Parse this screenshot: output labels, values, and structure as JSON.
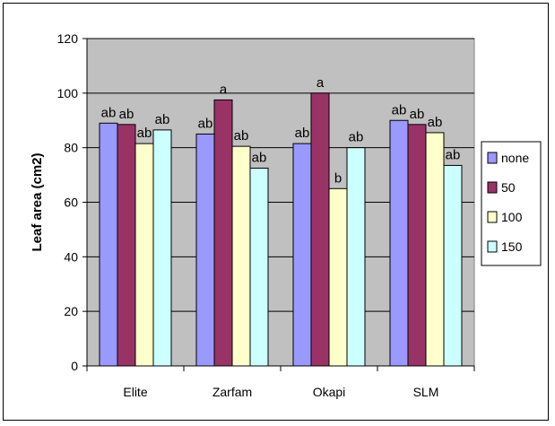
{
  "chart_data": {
    "type": "bar",
    "title": "",
    "xlabel": "",
    "ylabel": "Leaf area (cm2)",
    "ylim": [
      0,
      120
    ],
    "yticks": [
      0,
      20,
      40,
      60,
      80,
      100,
      120
    ],
    "grid": true,
    "legend_position": "right",
    "plot_background": "#c0c0c0",
    "categories": [
      "Elite",
      "Zarfam",
      "Okapi",
      "SLM"
    ],
    "series": [
      {
        "name": "none",
        "color": "#9999ff",
        "values": [
          89,
          85,
          81.5,
          90
        ],
        "labels": [
          "ab",
          "ab",
          "ab",
          "ab"
        ]
      },
      {
        "name": "50",
        "color": "#993366",
        "values": [
          88.5,
          97.5,
          100,
          88.5
        ],
        "labels": [
          "ab",
          "a",
          "a",
          "ab"
        ]
      },
      {
        "name": "100",
        "color": "#ffffcc",
        "values": [
          81.5,
          80.5,
          65,
          85.5
        ],
        "labels": [
          "ab",
          "ab",
          "b",
          "ab"
        ]
      },
      {
        "name": "150",
        "color": "#ccffff",
        "values": [
          86.5,
          72.5,
          80,
          73.5
        ],
        "labels": [
          "ab",
          "ab",
          "ab",
          "ab"
        ]
      }
    ]
  }
}
